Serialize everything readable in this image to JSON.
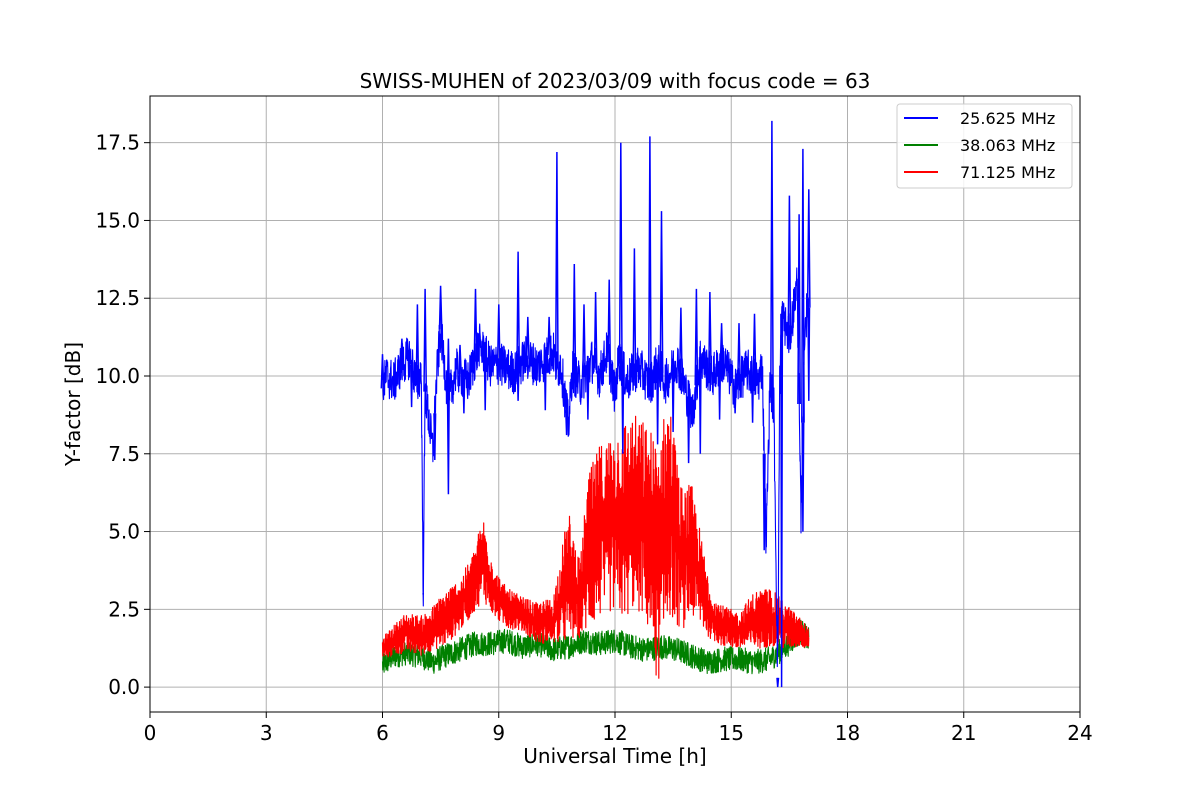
{
  "chart_data": {
    "type": "line",
    "title": "SWISS-MUHEN of 2023/03/09 with focus code = 63",
    "xlabel": "Universal Time [h]",
    "ylabel": "Y-factor [dB]",
    "xlim": [
      0,
      24
    ],
    "ylim": [
      -0.8,
      19.0
    ],
    "xticks": [
      "0",
      "3",
      "6",
      "9",
      "12",
      "15",
      "18",
      "21",
      "24"
    ],
    "yticks": [
      "0.0",
      "2.5",
      "5.0",
      "7.5",
      "10.0",
      "12.5",
      "15.0",
      "17.5"
    ],
    "grid": true,
    "legend_position": "top-right",
    "series": [
      {
        "name": "25.625 MHz",
        "color": "#0000ff",
        "x": [
          6.0,
          6.1,
          6.3,
          6.5,
          6.7,
          6.9,
          7.0,
          7.05,
          7.1,
          7.3,
          7.4,
          7.5,
          7.7,
          7.9,
          8.2,
          8.5,
          8.8,
          9.0,
          9.4,
          9.7,
          10.0,
          10.4,
          10.5,
          10.6,
          10.8,
          10.9,
          11.1,
          11.4,
          11.6,
          11.8,
          12.0,
          12.1,
          12.3,
          12.6,
          12.9,
          13.1,
          13.3,
          13.6,
          14.0,
          14.2,
          14.5,
          14.8,
          15.1,
          15.4,
          15.7,
          15.8,
          15.9,
          16.0,
          16.1,
          16.2,
          16.25,
          16.3,
          16.5,
          16.7,
          16.8,
          16.9,
          17.0
        ],
        "y": [
          9.6,
          10.0,
          9.8,
          10.4,
          10.6,
          9.7,
          10.2,
          3.0,
          9.5,
          7.6,
          10.0,
          11.5,
          9.2,
          10.2,
          9.8,
          11.0,
          10.3,
          10.4,
          10.1,
          10.6,
          10.3,
          10.8,
          10.2,
          10.4,
          8.4,
          10.2,
          9.7,
          10.5,
          10.0,
          10.8,
          9.4,
          10.6,
          9.8,
          10.3,
          9.7,
          10.4,
          9.8,
          10.5,
          8.8,
          10.6,
          10.0,
          10.5,
          9.6,
          10.2,
          9.8,
          10.4,
          4.6,
          9.8,
          9.0,
          0.3,
          9.7,
          12.0,
          11.2,
          13.0,
          5.2,
          11.8,
          12.2
        ],
        "spikes": [
          [
            6.0,
            10.7
          ],
          [
            6.5,
            11.2
          ],
          [
            6.9,
            12.3
          ],
          [
            7.1,
            12.8
          ],
          [
            7.5,
            12.9
          ],
          [
            7.7,
            11.2
          ],
          [
            8.0,
            11.0
          ],
          [
            8.4,
            12.8
          ],
          [
            8.6,
            11.3
          ],
          [
            9.0,
            12.3
          ],
          [
            9.5,
            14.0
          ],
          [
            9.75,
            11.9
          ],
          [
            10.3,
            11.9
          ],
          [
            10.5,
            17.2
          ],
          [
            10.95,
            13.6
          ],
          [
            11.2,
            12.3
          ],
          [
            11.5,
            12.7
          ],
          [
            11.85,
            13.1
          ],
          [
            12.15,
            17.5
          ],
          [
            12.5,
            14.1
          ],
          [
            12.9,
            17.7
          ],
          [
            13.2,
            15.3
          ],
          [
            13.7,
            12.2
          ],
          [
            14.1,
            12.8
          ],
          [
            14.45,
            12.7
          ],
          [
            14.75,
            11.7
          ],
          [
            15.2,
            11.7
          ],
          [
            15.6,
            12.0
          ],
          [
            16.05,
            18.2
          ],
          [
            16.5,
            15.8
          ],
          [
            16.75,
            15.2
          ],
          [
            16.85,
            17.3
          ],
          [
            17.0,
            16.0
          ]
        ],
        "dips": [
          [
            6.75,
            9.0
          ],
          [
            7.05,
            3.0
          ],
          [
            7.35,
            7.3
          ],
          [
            7.7,
            6.2
          ],
          [
            8.1,
            8.8
          ],
          [
            8.65,
            8.9
          ],
          [
            9.5,
            9.2
          ],
          [
            10.2,
            8.9
          ],
          [
            10.75,
            8.1
          ],
          [
            11.3,
            8.6
          ],
          [
            12.2,
            7.5
          ],
          [
            13.1,
            7.8
          ],
          [
            13.5,
            8.2
          ],
          [
            13.9,
            7.2
          ],
          [
            14.2,
            7.5
          ],
          [
            14.7,
            8.6
          ],
          [
            15.1,
            8.8
          ],
          [
            15.55,
            8.5
          ],
          [
            15.85,
            4.4
          ],
          [
            16.2,
            0.0
          ],
          [
            16.3,
            0.0
          ],
          [
            16.85,
            5.0
          ],
          [
            17.0,
            9.2
          ]
        ]
      },
      {
        "name": "38.063 MHz",
        "color": "#008000",
        "x": [
          6.0,
          6.3,
          6.6,
          7.0,
          7.3,
          7.6,
          8.0,
          8.4,
          8.8,
          9.2,
          9.6,
          10.0,
          10.4,
          10.8,
          11.2,
          11.6,
          12.0,
          12.4,
          12.8,
          13.2,
          13.6,
          14.0,
          14.4,
          14.8,
          15.2,
          15.6,
          16.0,
          16.4,
          16.8,
          17.0
        ],
        "y": [
          0.7,
          1.0,
          1.1,
          1.0,
          0.8,
          1.0,
          1.2,
          1.4,
          1.4,
          1.5,
          1.3,
          1.4,
          1.2,
          1.3,
          1.5,
          1.4,
          1.5,
          1.3,
          1.2,
          1.3,
          1.2,
          1.0,
          0.8,
          0.9,
          0.9,
          0.8,
          0.9,
          1.3,
          1.8,
          1.5
        ]
      },
      {
        "name": "71.125 MHz",
        "color": "#ff0000",
        "x": [
          6.0,
          6.3,
          6.6,
          7.0,
          7.3,
          7.6,
          8.0,
          8.3,
          8.6,
          8.9,
          9.2,
          9.6,
          10.0,
          10.4,
          10.8,
          11.1,
          11.3,
          11.6,
          11.9,
          12.2,
          12.5,
          12.8,
          13.1,
          13.4,
          13.7,
          14.0,
          14.2,
          14.5,
          14.8,
          15.2,
          15.6,
          16.0,
          16.4,
          16.8,
          17.0
        ],
        "y": [
          1.2,
          1.4,
          1.7,
          1.5,
          1.8,
          2.0,
          2.7,
          3.3,
          4.2,
          3.0,
          2.5,
          2.3,
          2.0,
          2.1,
          2.1,
          2.6,
          4.5,
          5.3,
          5.8,
          5.6,
          6.2,
          5.8,
          5.2,
          5.8,
          4.0,
          4.8,
          3.6,
          2.5,
          2.0,
          1.7,
          1.8,
          1.8,
          1.7,
          1.6,
          1.4
        ],
        "envelope_top": [
          1.6,
          2.0,
          2.4,
          2.3,
          2.6,
          3.1,
          3.5,
          4.2,
          5.5,
          3.8,
          3.2,
          2.9,
          2.7,
          2.9,
          5.7,
          4.0,
          6.8,
          7.8,
          8.2,
          8.6,
          8.8,
          8.5,
          8.0,
          9.4,
          6.5,
          6.5,
          5.0,
          3.0,
          2.6,
          2.4,
          3.1,
          3.2,
          2.7,
          2.2,
          1.9
        ],
        "envelope_bottom": [
          0.9,
          1.0,
          1.1,
          1.0,
          1.2,
          1.3,
          1.8,
          2.3,
          2.8,
          2.2,
          1.9,
          1.8,
          1.4,
          1.4,
          1.4,
          1.6,
          1.8,
          2.2,
          2.4,
          2.1,
          2.5,
          2.1,
          0.0,
          2.3,
          1.8,
          2.2,
          1.9,
          1.5,
          1.3,
          1.2,
          1.2,
          1.3,
          1.2,
          1.3,
          1.2
        ]
      }
    ]
  }
}
